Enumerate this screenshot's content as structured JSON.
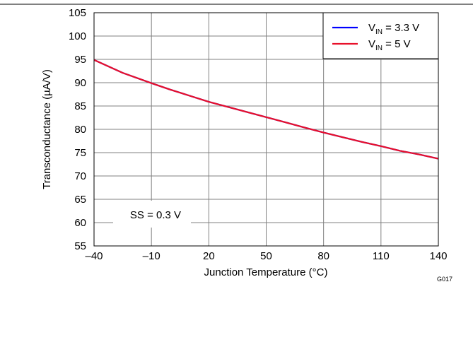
{
  "chart_data": {
    "type": "line",
    "xlabel": "Junction Temperature (°C)",
    "ylabel": "Transconductance (µA/V)",
    "xlim": [
      -40,
      140
    ],
    "ylim": [
      55,
      105
    ],
    "x_ticks": [
      -40,
      -10,
      20,
      50,
      80,
      110,
      140
    ],
    "x_tick_labels": [
      "–40",
      "–10",
      "20",
      "50",
      "80",
      "110",
      "140"
    ],
    "y_ticks": [
      55,
      60,
      65,
      70,
      75,
      80,
      85,
      90,
      95,
      100,
      105
    ],
    "y_tick_labels": [
      "55",
      "60",
      "65",
      "70",
      "75",
      "80",
      "85",
      "90",
      "95",
      "100",
      "105"
    ],
    "grid": true,
    "legend_position": "top-right",
    "annotation": "SS = 0.3 V",
    "figure_id": "G017",
    "series": [
      {
        "name": "VIN = 3.3 V",
        "legend_main": "V",
        "legend_sub": "IN",
        "legend_rest": " = 3.3 V",
        "color": "#0000ff",
        "x": [
          -40,
          -25,
          -10,
          0,
          10,
          20,
          30,
          40,
          50,
          60,
          70,
          80,
          90,
          100,
          110,
          120,
          130,
          140
        ],
        "y": [
          94.9,
          92.1,
          89.9,
          88.5,
          87.2,
          85.9,
          84.8,
          83.7,
          82.6,
          81.5,
          80.4,
          79.3,
          78.3,
          77.3,
          76.4,
          75.4,
          74.6,
          73.7
        ]
      },
      {
        "name": "VIN = 5 V",
        "legend_main": "V",
        "legend_sub": "IN",
        "legend_rest": " = 5 V",
        "color": "#e8102a",
        "x": [
          -40,
          -25,
          -10,
          0,
          10,
          20,
          30,
          40,
          50,
          60,
          70,
          80,
          90,
          100,
          110,
          120,
          130,
          140
        ],
        "y": [
          94.9,
          92.1,
          89.9,
          88.5,
          87.2,
          85.9,
          84.8,
          83.7,
          82.6,
          81.5,
          80.4,
          79.3,
          78.3,
          77.3,
          76.4,
          75.4,
          74.6,
          73.7
        ]
      }
    ]
  }
}
